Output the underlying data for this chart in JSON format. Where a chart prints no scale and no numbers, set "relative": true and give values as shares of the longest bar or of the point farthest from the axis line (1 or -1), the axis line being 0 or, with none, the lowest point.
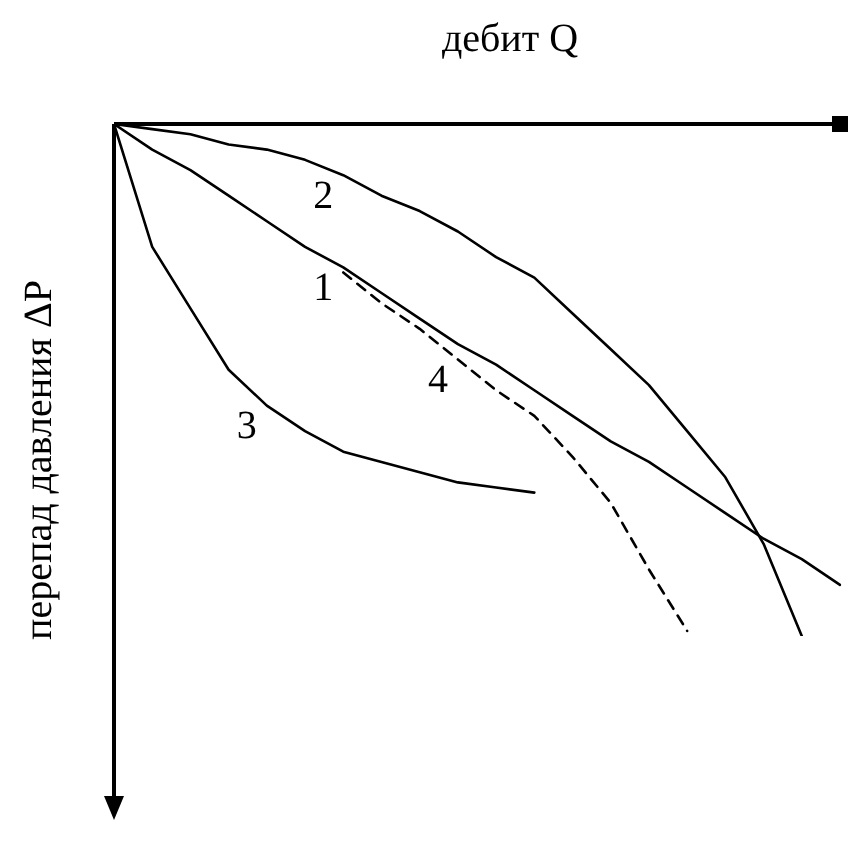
{
  "chart_data": {
    "type": "line",
    "relative": true,
    "xlabel": "дебит Q",
    "ylabel": "перепад давления ΔP",
    "legend": false,
    "marker": "none",
    "categories": [
      null,
      null,
      null,
      null,
      null,
      null,
      null,
      null,
      null,
      null,
      null,
      null,
      null,
      null,
      null,
      null,
      null,
      null,
      null,
      null
    ],
    "series": [
      {
        "name": "1",
        "color": "#000000",
        "values": [
          0,
          -0.05,
          -0.09,
          -0.14,
          -0.19,
          -0.24,
          -0.28,
          -0.33,
          -0.38,
          -0.43,
          -0.47,
          -0.52,
          -0.57,
          -0.62,
          -0.66,
          -0.71,
          -0.76,
          -0.81,
          -0.85,
          -0.9
        ]
      },
      {
        "name": "2",
        "color": "#000000",
        "values": [
          0,
          -0.01,
          -0.02,
          -0.04,
          -0.05,
          -0.07,
          -0.1,
          -0.14,
          -0.17,
          -0.21,
          -0.26,
          -0.3,
          -0.37,
          -0.44,
          -0.51,
          -0.6,
          -0.69,
          -0.82,
          -1,
          null
        ]
      },
      {
        "name": "3",
        "color": "#000000",
        "values": [
          0,
          -0.24,
          -0.36,
          -0.48,
          -0.55,
          -0.6,
          -0.64,
          -0.66,
          -0.68,
          -0.7,
          -0.71,
          -0.72,
          null,
          null,
          null,
          null,
          null,
          null,
          null,
          null
        ]
      },
      {
        "name": "4",
        "color": "#000000",
        "line_style": "dashed",
        "values": [
          null,
          null,
          null,
          null,
          null,
          null,
          -0.29,
          -0.35,
          -0.4,
          -0.46,
          -0.52,
          -0.57,
          -0.65,
          -0.74,
          -0.87,
          -0.99,
          null,
          null,
          null,
          null
        ]
      }
    ]
  }
}
